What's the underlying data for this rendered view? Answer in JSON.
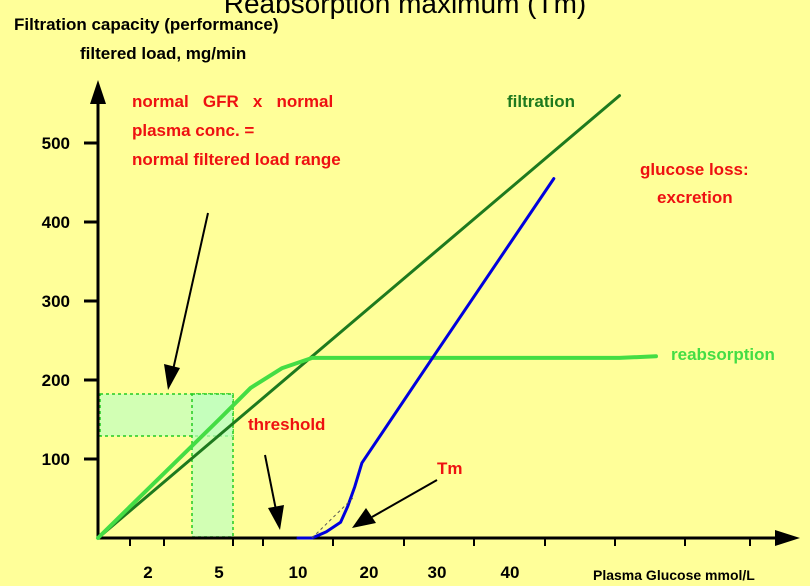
{
  "header": {
    "title": "Reabsorption maximum (Tm)"
  },
  "chart_data": {
    "type": "line",
    "title": "Reabsorption maximum (Tm)",
    "ylabel": "Filtration capacity (performance)",
    "ylabel2": "filtered load, mg/min",
    "xlabel": "Plasma Glucose mmol/L",
    "yticks": [
      100,
      200,
      300,
      400,
      500
    ],
    "xticks": [
      2,
      5,
      10,
      20,
      30,
      40
    ],
    "series": [
      {
        "name": "filtration",
        "color": "#1e7a1e",
        "points": [
          [
            0,
            0
          ],
          [
            55,
            560
          ]
        ]
      },
      {
        "name": "reabsorption",
        "color": "#44dd44",
        "points": [
          [
            0,
            0
          ],
          [
            5,
            150
          ],
          [
            7,
            190
          ],
          [
            9,
            215
          ],
          [
            12,
            228
          ],
          [
            20,
            228
          ],
          [
            40,
            228
          ],
          [
            55,
            228
          ],
          [
            60,
            230
          ]
        ]
      },
      {
        "name": "glucose loss: excretion",
        "color": "#0000dd",
        "points": [
          [
            10,
            0
          ],
          [
            12,
            0
          ],
          [
            14,
            8
          ],
          [
            16,
            20
          ],
          [
            17,
            40
          ],
          [
            18,
            65
          ],
          [
            19,
            95
          ],
          [
            29.5,
            230
          ],
          [
            46,
            455
          ]
        ]
      }
    ],
    "annotations": {
      "normal_note": [
        "normal   GFR   x   normal",
        "plasma conc. =",
        "normal filtered load range"
      ],
      "filtration_label": "filtration",
      "excretion_label": [
        "glucose loss:",
        "excretion"
      ],
      "reabsorption_label": "reabsorption",
      "threshold_label": "threshold",
      "tm_label": "Tm"
    },
    "colors": {
      "background": "#ffff99",
      "annotation_red": "#ee1111",
      "axis": "#000000"
    }
  }
}
